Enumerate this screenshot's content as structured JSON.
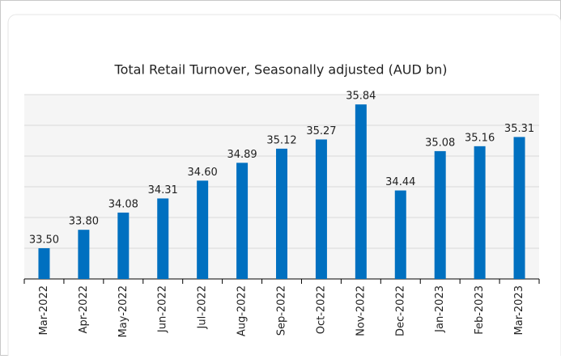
{
  "chart_data": {
    "type": "bar",
    "title": "Total Retail Turnover, Seasonally adjusted (AUD bn)",
    "categories": [
      "Mar-2022",
      "Apr-2022",
      "May-2022",
      "Jun-2022",
      "Jul-2022",
      "Aug-2022",
      "Sep-2022",
      "Oct-2022",
      "Nov-2022",
      "Dec-2022",
      "Jan-2023",
      "Feb-2023",
      "Mar-2023"
    ],
    "values": [
      33.5,
      33.8,
      34.08,
      34.31,
      34.6,
      34.89,
      35.12,
      35.27,
      35.84,
      34.44,
      35.08,
      35.16,
      35.31
    ],
    "value_labels": [
      "33.50",
      "33.80",
      "34.08",
      "34.31",
      "34.60",
      "34.89",
      "35.12",
      "35.27",
      "35.84",
      "34.44",
      "35.08",
      "35.16",
      "35.31"
    ],
    "color": "#0070c0",
    "ylim": [
      33,
      36
    ],
    "yticks": [
      33,
      33.5,
      34,
      34.5,
      35,
      35.5,
      36
    ],
    "grid": true
  }
}
